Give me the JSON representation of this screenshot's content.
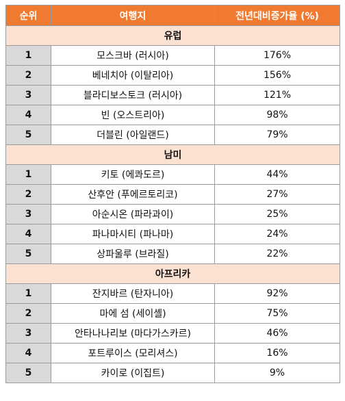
{
  "header": {
    "rank": "순위",
    "destination": "여행지",
    "growth": "전년대비증가율 (%)"
  },
  "sections": [
    {
      "region": "유럽",
      "rows": [
        {
          "rank": "1",
          "destination": "모스크바 (러시아)",
          "growth": "176%"
        },
        {
          "rank": "2",
          "destination": "베네치아 (이탈리아)",
          "growth": "156%"
        },
        {
          "rank": "3",
          "destination": "블라디보스토크 (러시아)",
          "growth": "121%"
        },
        {
          "rank": "4",
          "destination": "빈 (오스트리아)",
          "growth": "98%"
        },
        {
          "rank": "5",
          "destination": "더블린 (아일랜드)",
          "growth": "79%"
        }
      ]
    },
    {
      "region": "남미",
      "rows": [
        {
          "rank": "1",
          "destination": "키토 (에콰도르)",
          "growth": "44%"
        },
        {
          "rank": "2",
          "destination": "산후안 (푸에르토리코)",
          "growth": "27%"
        },
        {
          "rank": "3",
          "destination": "아순시온 (파라과이)",
          "growth": "25%"
        },
        {
          "rank": "4",
          "destination": "파나마시티 (파나마)",
          "growth": "24%"
        },
        {
          "rank": "5",
          "destination": "상파울루 (브라질)",
          "growth": "22%"
        }
      ]
    },
    {
      "region": "아프리카",
      "rows": [
        {
          "rank": "1",
          "destination": "잔지바르 (탄자니아)",
          "growth": "92%"
        },
        {
          "rank": "2",
          "destination": "마에 섬 (세이셸)",
          "growth": "75%"
        },
        {
          "rank": "3",
          "destination": "안타나나리보 (마다가스카르)",
          "growth": "46%"
        },
        {
          "rank": "4",
          "destination": "포트루이스 (모리셔스)",
          "growth": "16%"
        },
        {
          "rank": "5",
          "destination": "카이로 (이집트)",
          "growth": "9%"
        }
      ]
    }
  ]
}
